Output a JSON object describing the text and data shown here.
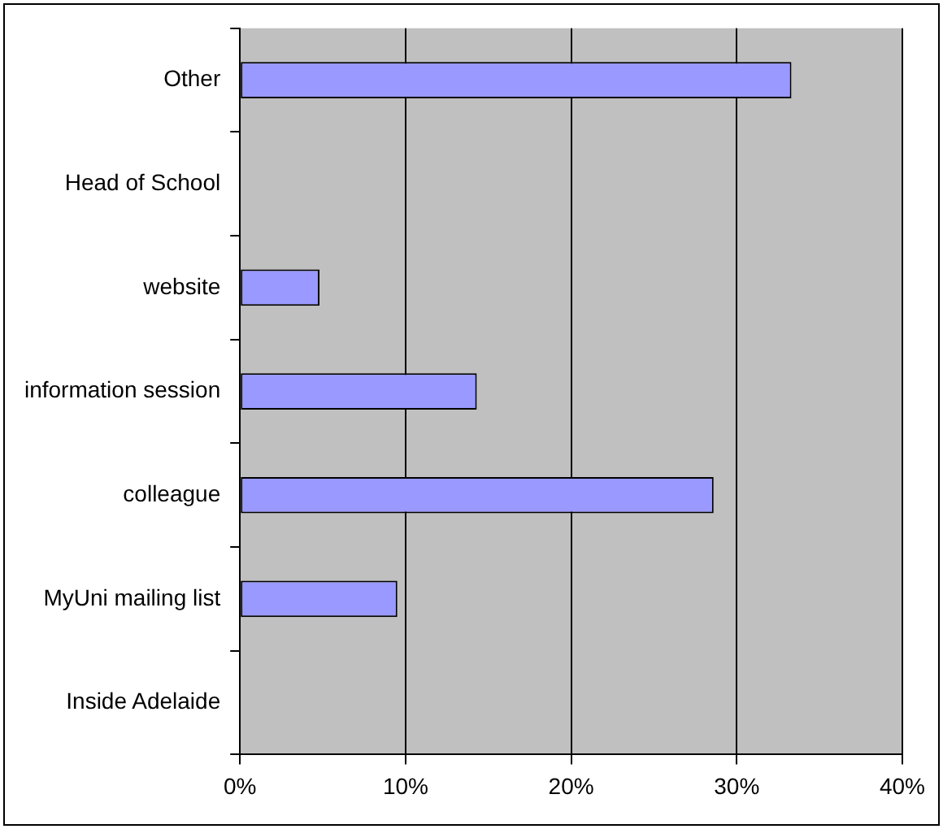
{
  "chart_data": {
    "type": "bar",
    "orientation": "horizontal",
    "categories": [
      "Other",
      "Head of School",
      "website",
      "information session",
      "colleague",
      "MyUni mailing list",
      "Inside Adelaide"
    ],
    "values": [
      33.3,
      0,
      4.8,
      14.3,
      28.6,
      9.5,
      0
    ],
    "color": "#9999ff",
    "xlim": [
      0,
      40
    ],
    "xticks": [
      {
        "value": 0,
        "label": "0%"
      },
      {
        "value": 10,
        "label": "10%"
      },
      {
        "value": 20,
        "label": "20%"
      },
      {
        "value": 30,
        "label": "30%"
      },
      {
        "value": 40,
        "label": "40%"
      }
    ],
    "grid": "x",
    "legend": false
  }
}
